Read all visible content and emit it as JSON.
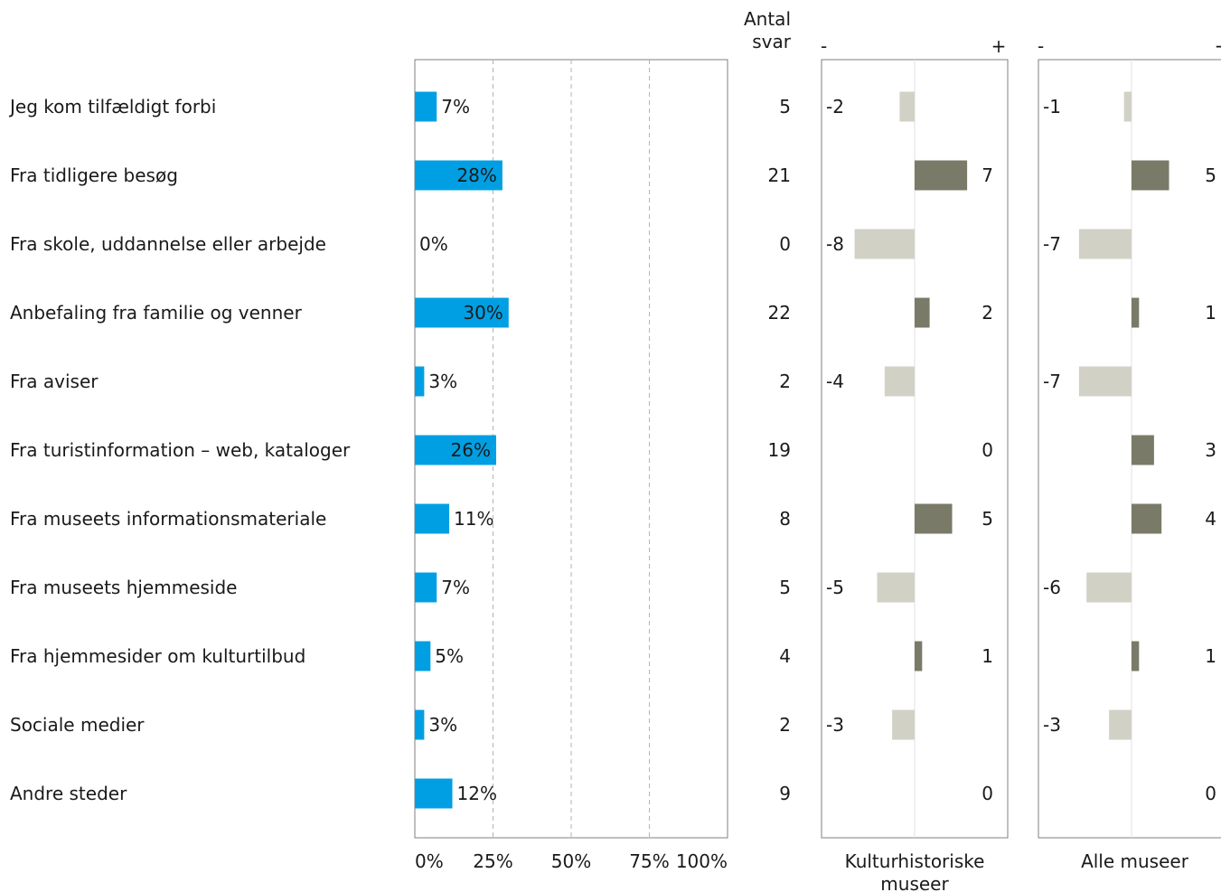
{
  "chart_data": {
    "type": "bar",
    "categories": [
      "Jeg kom tilfældigt forbi",
      "Fra tidligere besøg",
      "Fra skole, uddannelse eller arbejde",
      "Anbefaling fra familie og venner",
      "Fra aviser",
      "Fra turistinformation – web, kataloger",
      "Fra museets informationsmateriale",
      "Fra museets hjemmeside",
      "Fra hjemmesider om kulturtilbud",
      "Sociale medier",
      "Andre steder"
    ],
    "percent": {
      "values": [
        7,
        28,
        0,
        30,
        3,
        26,
        11,
        7,
        5,
        3,
        12
      ],
      "labels": [
        "7%",
        "28%",
        "0%",
        "30%",
        "3%",
        "26%",
        "11%",
        "7%",
        "5%",
        "3%",
        "12%"
      ],
      "ticks": [
        "0%",
        "25%",
        "50%",
        "75%",
        "100%"
      ],
      "xlim": [
        0,
        100
      ],
      "color": "#009fe3"
    },
    "count_header": [
      "Antal",
      "svar"
    ],
    "counts": [
      "5",
      "21",
      "0",
      "22",
      "2",
      "19",
      "8",
      "5",
      "4",
      "2",
      "9"
    ],
    "comparisons": [
      {
        "name": "Kulturhistoriske museer",
        "name_lines": [
          "Kulturhistoriske",
          "museer"
        ],
        "minus": "-",
        "plus": "+",
        "values": [
          -2,
          7,
          -8,
          2,
          -4,
          0,
          5,
          -5,
          1,
          -3,
          0
        ],
        "labels": [
          "-2",
          "7",
          "-8",
          "2",
          "-4",
          "0",
          "5",
          "-5",
          "1",
          "-3",
          "0"
        ]
      },
      {
        "name": "Alle museer",
        "name_lines": [
          "Alle museer"
        ],
        "minus": "-",
        "plus": "+",
        "values": [
          -1,
          5,
          -7,
          1,
          -7,
          3,
          4,
          -6,
          1,
          -3,
          0
        ],
        "labels": [
          "-1",
          "5",
          "-7",
          "1",
          "-7",
          "3",
          "4",
          "-6",
          "1",
          "-3",
          "0"
        ]
      }
    ],
    "colors": {
      "positive": "#7a7a68",
      "negative": "#d1d1c6",
      "frame": "#7f7f7f",
      "grid": "#b3b3b3"
    }
  }
}
